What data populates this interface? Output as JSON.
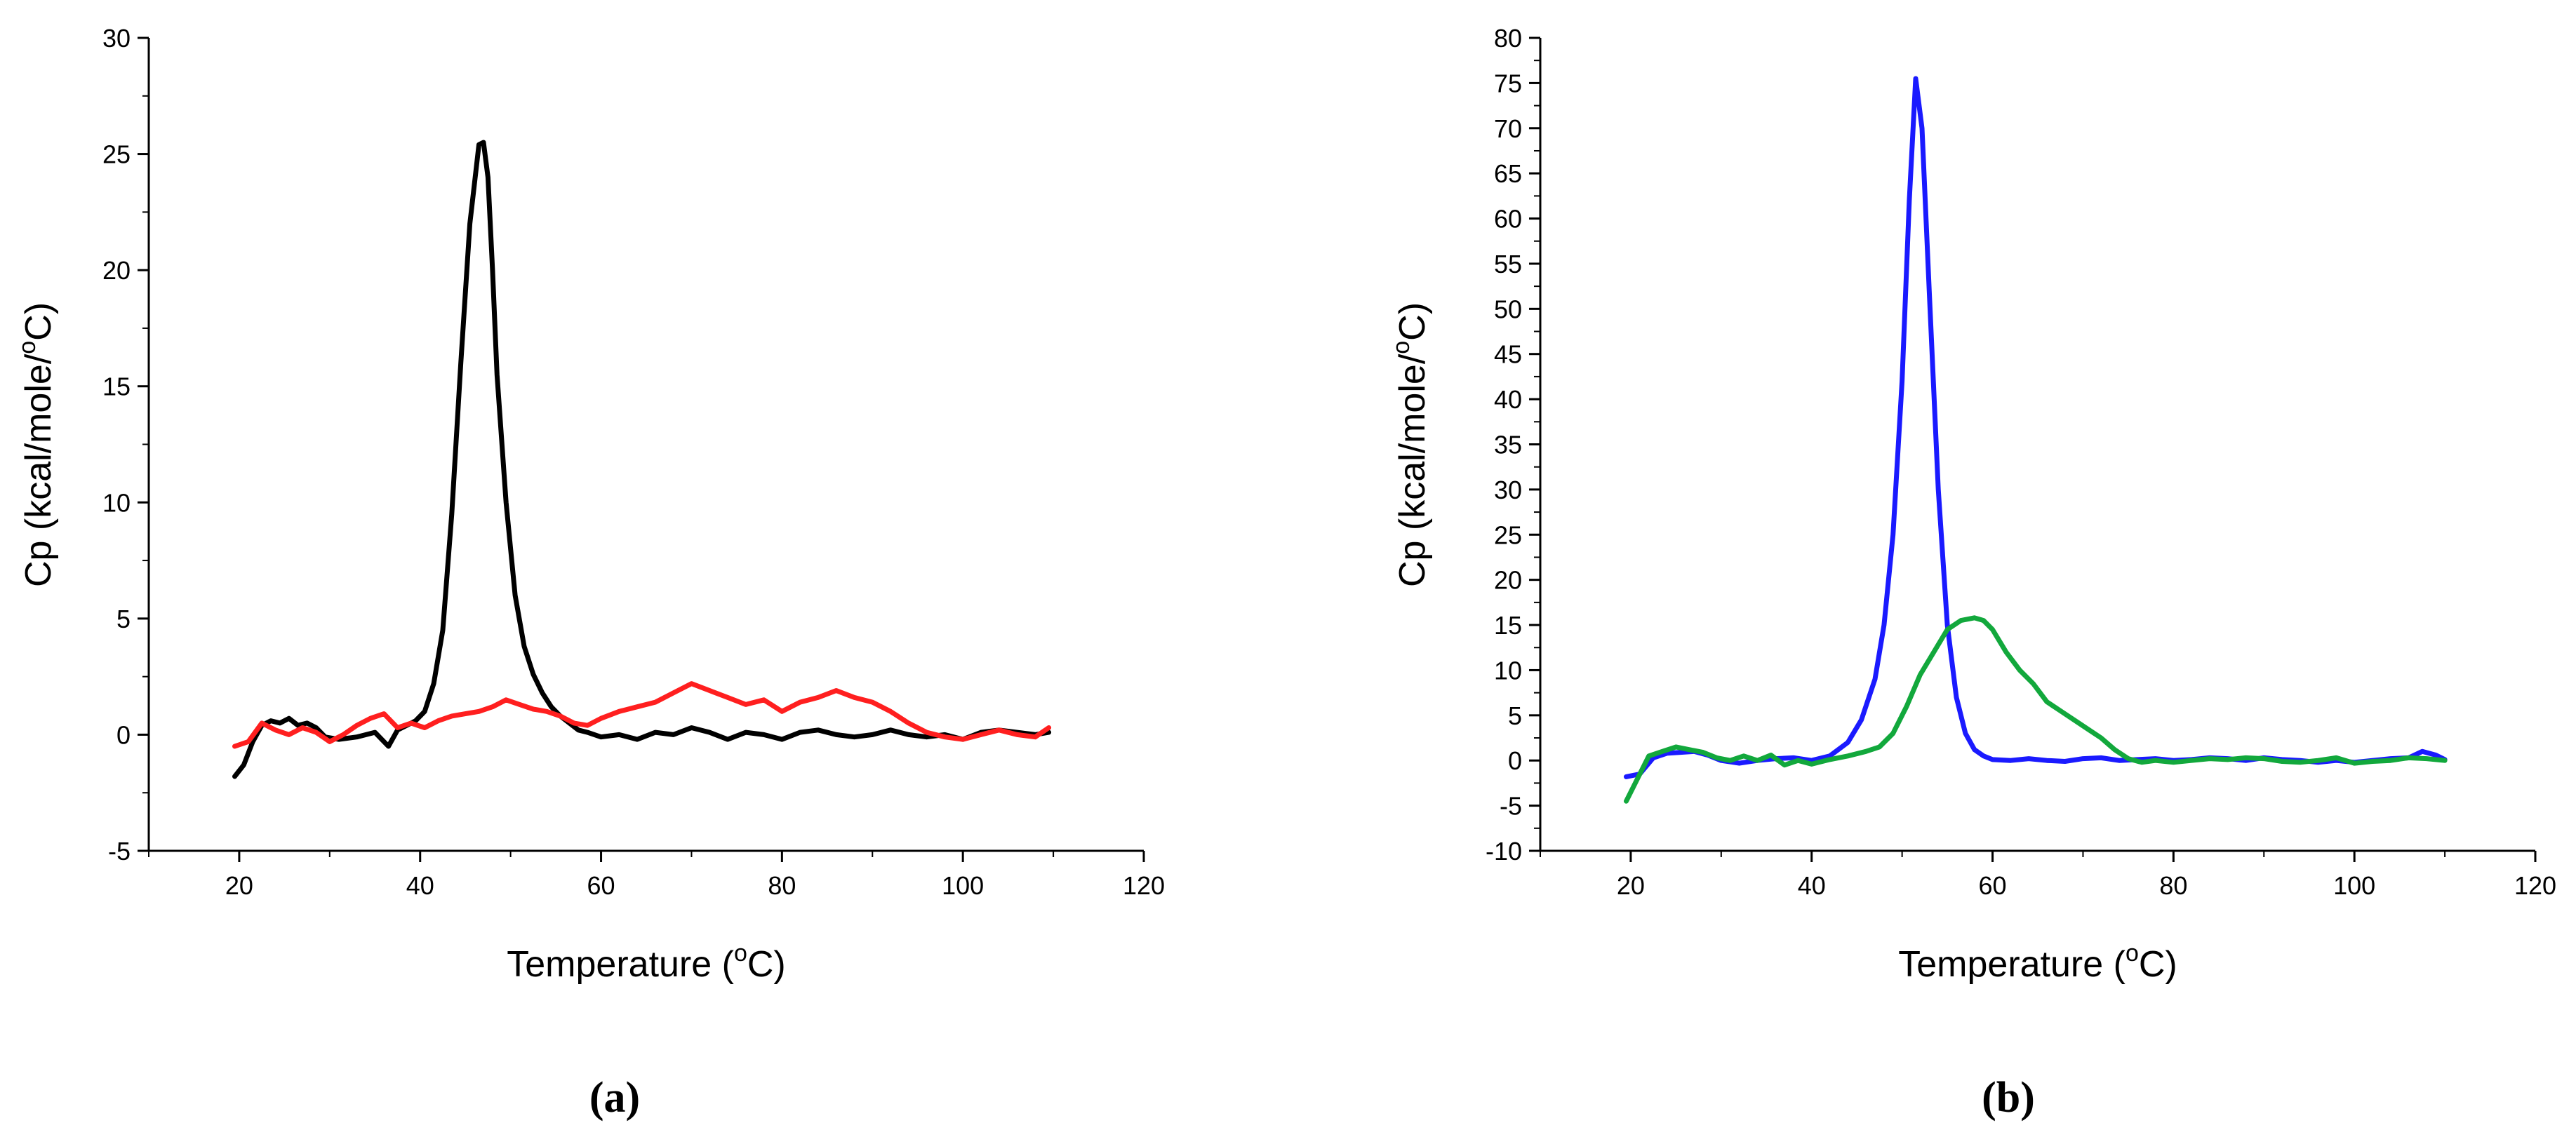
{
  "chart_data": [
    {
      "type": "line",
      "panel_label": "(a)",
      "title": "",
      "xlabel": "Temperature (°C)",
      "ylabel": "Cp (kcal/mole/°C)",
      "xlim": [
        10,
        120
      ],
      "ylim": [
        -5,
        30
      ],
      "xticks": [
        "20",
        "40",
        "60",
        "80",
        "100",
        "120"
      ],
      "yticks": [
        "-5",
        "0",
        "5",
        "10",
        "15",
        "20",
        "25",
        "30"
      ],
      "grid": false,
      "legend": "none",
      "series": [
        {
          "color": "#000000",
          "x": [
            19.5,
            20.5,
            21.5,
            22.5,
            23.5,
            24.5,
            25.5,
            26.5,
            27.5,
            28.5,
            29.5,
            31,
            33,
            35,
            36.5,
            37.5,
            38.5,
            39.5,
            40.5,
            41.5,
            42.5,
            43.5,
            44.5,
            45.5,
            46.5,
            47,
            47.5,
            48,
            48.5,
            49.5,
            50.5,
            51.5,
            52.5,
            53.5,
            54.5,
            55.5,
            56.5,
            57.5,
            58.5,
            60,
            62,
            64,
            66,
            68,
            70,
            72,
            74,
            76,
            78,
            80,
            82,
            84,
            86,
            88,
            90,
            92,
            94,
            96,
            98,
            100,
            102,
            104,
            106,
            108,
            109.5
          ],
          "y": [
            -1.8,
            -1.3,
            -0.3,
            0.4,
            0.6,
            0.5,
            0.7,
            0.4,
            0.5,
            0.3,
            -0.1,
            -0.2,
            -0.1,
            0.1,
            -0.5,
            0.2,
            0.4,
            0.6,
            1.0,
            2.2,
            4.5,
            9.5,
            16.0,
            22.0,
            25.4,
            25.5,
            24.0,
            20.0,
            15.5,
            10.0,
            6.0,
            3.8,
            2.6,
            1.8,
            1.2,
            0.8,
            0.5,
            0.2,
            0.1,
            -0.1,
            0.0,
            -0.2,
            0.1,
            0.0,
            0.3,
            0.1,
            -0.2,
            0.1,
            0.0,
            -0.2,
            0.1,
            0.2,
            0.0,
            -0.1,
            0.0,
            0.2,
            0.0,
            -0.1,
            0.0,
            -0.2,
            0.1,
            0.2,
            0.1,
            0.0,
            0.1
          ]
        },
        {
          "color": "#ff1f1f",
          "x": [
            19.5,
            21,
            22.5,
            24,
            25.5,
            27,
            28.5,
            30,
            31.5,
            33,
            34.5,
            36,
            37.5,
            39,
            40.5,
            42,
            43.5,
            45,
            46.5,
            48,
            49.5,
            51,
            52.5,
            54,
            55.5,
            57,
            58.5,
            60,
            62,
            64,
            66,
            68,
            70,
            72,
            74,
            76,
            78,
            80,
            82,
            84,
            86,
            88,
            90,
            92,
            94,
            96,
            98,
            100,
            102,
            104,
            106,
            108,
            109.5
          ],
          "y": [
            -0.5,
            -0.3,
            0.5,
            0.2,
            0.0,
            0.3,
            0.1,
            -0.3,
            0.0,
            0.4,
            0.7,
            0.9,
            0.3,
            0.5,
            0.3,
            0.6,
            0.8,
            0.9,
            1.0,
            1.2,
            1.5,
            1.3,
            1.1,
            1.0,
            0.8,
            0.5,
            0.4,
            0.7,
            1.0,
            1.2,
            1.4,
            1.8,
            2.2,
            1.9,
            1.6,
            1.3,
            1.5,
            1.0,
            1.4,
            1.6,
            1.9,
            1.6,
            1.4,
            1.0,
            0.5,
            0.1,
            -0.1,
            -0.2,
            0.0,
            0.2,
            0.0,
            -0.1,
            0.3
          ]
        }
      ]
    },
    {
      "type": "line",
      "panel_label": "(b)",
      "title": "",
      "xlabel": "Temperature (°C)",
      "ylabel": "Cp (kcal/mole/°C)",
      "xlim": [
        10,
        120
      ],
      "ylim": [
        -10,
        80
      ],
      "xticks": [
        "20",
        "40",
        "60",
        "80",
        "100",
        "120"
      ],
      "yticks": [
        "-10",
        "-5",
        "0",
        "5",
        "10",
        "15",
        "20",
        "25",
        "30",
        "35",
        "40",
        "45",
        "50",
        "55",
        "60",
        "65",
        "70",
        "75",
        "80"
      ],
      "grid": false,
      "legend": "none",
      "series": [
        {
          "color": "#1a1aff",
          "x": [
            19.5,
            21,
            22.5,
            24,
            25.5,
            27,
            28.5,
            30,
            32,
            34,
            36,
            38,
            40,
            42,
            44,
            45.5,
            47,
            48,
            49,
            50,
            50.8,
            51.5,
            52.2,
            53,
            54,
            55,
            56,
            57,
            58,
            59,
            60,
            62,
            64,
            66,
            68,
            70,
            72,
            74,
            76,
            78,
            80,
            82,
            84,
            86,
            88,
            90,
            92,
            94,
            96,
            98,
            100,
            102,
            104,
            106,
            107.5,
            109,
            110
          ],
          "y": [
            -1.8,
            -1.5,
            0.3,
            0.8,
            0.9,
            1.0,
            0.6,
            0.0,
            -0.3,
            0.0,
            0.2,
            0.3,
            0.0,
            0.5,
            2.0,
            4.5,
            9.0,
            15.0,
            25.0,
            42.0,
            62.0,
            75.5,
            70.0,
            52.0,
            30.0,
            15.0,
            7.0,
            3.0,
            1.2,
            0.5,
            0.1,
            0.0,
            0.2,
            0.0,
            -0.1,
            0.2,
            0.3,
            0.0,
            0.1,
            0.2,
            0.0,
            0.1,
            0.3,
            0.2,
            0.0,
            0.3,
            0.1,
            0.0,
            -0.2,
            0.0,
            -0.2,
            0.0,
            0.2,
            0.3,
            1.0,
            0.6,
            0.1
          ]
        },
        {
          "color": "#12a83c",
          "x": [
            19.5,
            20.5,
            22,
            23.5,
            25,
            26.5,
            28,
            29.5,
            31,
            32.5,
            34,
            35.5,
            37,
            38.5,
            40,
            42,
            44,
            46,
            47.5,
            49,
            50.5,
            52,
            53.5,
            55,
            56.5,
            58,
            59,
            60,
            61.5,
            63,
            64.5,
            66,
            67.5,
            69,
            70.5,
            72,
            73.5,
            75,
            76.5,
            78,
            80,
            82,
            84,
            86,
            88,
            90,
            92,
            94,
            96,
            98,
            100,
            102,
            104,
            106,
            108,
            110
          ],
          "y": [
            -4.5,
            -2.5,
            0.5,
            1.0,
            1.5,
            1.2,
            0.9,
            0.3,
            0.0,
            0.5,
            0.0,
            0.6,
            -0.5,
            0.0,
            -0.4,
            0.1,
            0.5,
            1.0,
            1.5,
            3.0,
            6.0,
            9.5,
            12.0,
            14.5,
            15.5,
            15.8,
            15.5,
            14.5,
            12.0,
            10.0,
            8.5,
            6.5,
            5.5,
            4.5,
            3.5,
            2.5,
            1.2,
            0.2,
            -0.2,
            0.0,
            -0.2,
            0.0,
            0.2,
            0.1,
            0.3,
            0.2,
            -0.1,
            -0.2,
            0.0,
            0.3,
            -0.3,
            -0.1,
            0.0,
            0.3,
            0.2,
            0.0
          ]
        }
      ]
    }
  ]
}
